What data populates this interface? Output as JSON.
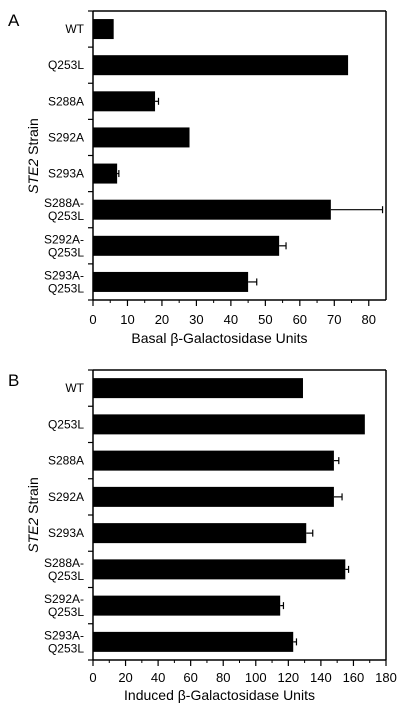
{
  "chart_data": [
    {
      "type": "bar",
      "orientation": "horizontal",
      "panel": "A",
      "xlabel": "Basal β-Galactosidase Units",
      "ylabel_italic": "STE2",
      "ylabel_rest": " Strain",
      "categories": [
        [
          "WT"
        ],
        [
          "Q253L"
        ],
        [
          "S288A"
        ],
        [
          "S292A"
        ],
        [
          "S293A"
        ],
        [
          "S288A-",
          "Q253L"
        ],
        [
          "S292A-",
          "Q253L"
        ],
        [
          "S293A-",
          "Q253L"
        ]
      ],
      "values": [
        6,
        74,
        18,
        28,
        7,
        69,
        54,
        45
      ],
      "errors": [
        0,
        0,
        1,
        0,
        0.5,
        15,
        2,
        2.5
      ],
      "xlim": [
        0,
        85
      ],
      "ticks": [
        0,
        10,
        20,
        30,
        40,
        50,
        60,
        70,
        80
      ],
      "grid": false
    },
    {
      "type": "bar",
      "orientation": "horizontal",
      "panel": "B",
      "xlabel": "Induced β-Galactosidase Units",
      "ylabel_italic": "STE2",
      "ylabel_rest": " Strain",
      "categories": [
        [
          "WT"
        ],
        [
          "Q253L"
        ],
        [
          "S288A"
        ],
        [
          "S292A"
        ],
        [
          "S293A"
        ],
        [
          "S288A-",
          "Q253L"
        ],
        [
          "S292A-",
          "Q253L"
        ],
        [
          "S293A-",
          "Q253L"
        ]
      ],
      "values": [
        129,
        167,
        148,
        148,
        131,
        155,
        115,
        123
      ],
      "errors": [
        0,
        0,
        3,
        5,
        4,
        2,
        2,
        2
      ],
      "xlim": [
        0,
        180
      ],
      "ticks": [
        0,
        20,
        40,
        60,
        80,
        100,
        120,
        140,
        160,
        180
      ],
      "grid": false
    }
  ]
}
